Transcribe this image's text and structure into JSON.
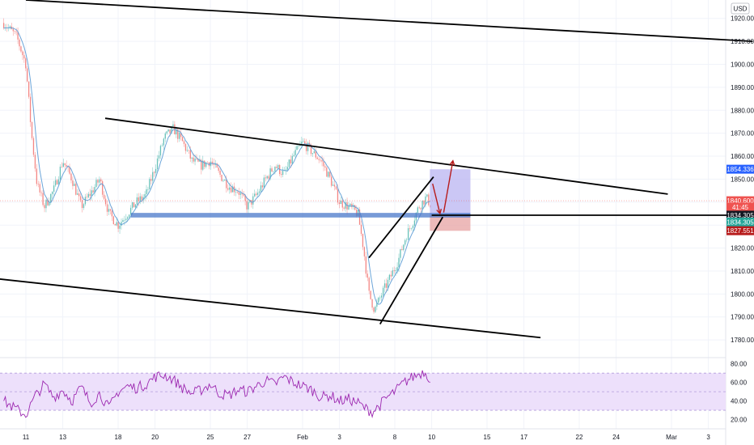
{
  "currency": "USD",
  "colors": {
    "up": "#26a69a",
    "down": "#ef5350",
    "ma": "#5b9bd5",
    "rsi": "#9c27b0",
    "rsi_band": "#ede0fb",
    "grid": "#f0f3fa",
    "trend": "#000000",
    "support_zone": "#4a78c9",
    "target_zone": "#b9b4f2",
    "stop_zone": "#e8a9a9",
    "arrow": "#b71c1c"
  },
  "chart_data": {
    "type": "candlestick",
    "title": "",
    "price_axis": {
      "ylim": [
        1773,
        1928
      ],
      "ticks": [
        "1920.000",
        "1910.000",
        "1900.000",
        "1890.000",
        "1880.000",
        "1870.000",
        "1860.000",
        "1850.000",
        "1840.000",
        "1830.000",
        "1820.000",
        "1810.000",
        "1800.000",
        "1790.000",
        "1780.000"
      ],
      "tick_values": [
        1920,
        1910,
        1900,
        1890,
        1880,
        1870,
        1860,
        1850,
        1840,
        1830,
        1820,
        1810,
        1800,
        1790,
        1780
      ]
    },
    "rsi_axis": {
      "ylim": [
        10,
        85
      ],
      "ticks": [
        "80.00",
        "60.00",
        "40.00",
        "20.00"
      ],
      "tick_values": [
        80,
        60,
        40,
        20
      ],
      "band": [
        30,
        70
      ]
    },
    "time_axis": {
      "labels": [
        "11",
        "13",
        "18",
        "20",
        "25",
        "27",
        "Feb",
        "3",
        "8",
        "10",
        "15",
        "17",
        "22",
        "24",
        "Mar",
        "3"
      ],
      "positions": [
        0,
        2,
        5,
        7,
        10,
        12,
        15,
        17,
        20,
        22,
        25,
        27,
        30,
        32,
        35,
        37
      ]
    },
    "price_badges": [
      {
        "label": "1854.336",
        "value": 1854.336,
        "color": "#2962ff"
      },
      {
        "label": "1840.600",
        "value": 1840.6,
        "color": "#ef5350"
      },
      {
        "label": "41:45",
        "value": 1837.8,
        "color": "#ef5350"
      },
      {
        "label": "1834.305",
        "value": 1834.305,
        "color": "#131722"
      },
      {
        "label": "1834.305",
        "value": 1831.3,
        "color": "#26a69a"
      },
      {
        "label": "1827.551",
        "value": 1827.551,
        "color": "#b71c1c"
      }
    ],
    "close_path": [
      [
        -1.2,
        1918
      ],
      [
        -0.5,
        1912
      ],
      [
        0,
        1900
      ],
      [
        0.3,
        1870
      ],
      [
        0.6,
        1848
      ],
      [
        1,
        1838
      ],
      [
        1.5,
        1845
      ],
      [
        2,
        1858
      ],
      [
        2.5,
        1850
      ],
      [
        3,
        1838
      ],
      [
        3.6,
        1845
      ],
      [
        4,
        1850
      ],
      [
        4.5,
        1835
      ],
      [
        5,
        1830
      ],
      [
        5.5,
        1835
      ],
      [
        6,
        1840
      ],
      [
        6.5,
        1843
      ],
      [
        7,
        1855
      ],
      [
        7.5,
        1868
      ],
      [
        8,
        1872
      ],
      [
        8.5,
        1866
      ],
      [
        9,
        1858
      ],
      [
        9.5,
        1856
      ],
      [
        10,
        1858
      ],
      [
        10.5,
        1852
      ],
      [
        11,
        1847
      ],
      [
        11.5,
        1845
      ],
      [
        12,
        1838
      ],
      [
        12.5,
        1843
      ],
      [
        13,
        1850
      ],
      [
        13.5,
        1856
      ],
      [
        14,
        1852
      ],
      [
        14.5,
        1860
      ],
      [
        15,
        1866
      ],
      [
        15.5,
        1862
      ],
      [
        16,
        1858
      ],
      [
        16.5,
        1850
      ],
      [
        17,
        1840
      ],
      [
        17.5,
        1838
      ],
      [
        18,
        1835
      ],
      [
        18.3,
        1820
      ],
      [
        18.6,
        1800
      ],
      [
        18.9,
        1793
      ],
      [
        19.3,
        1800
      ],
      [
        19.8,
        1808
      ],
      [
        20.2,
        1815
      ],
      [
        20.6,
        1825
      ],
      [
        21,
        1832
      ],
      [
        21.3,
        1838
      ],
      [
        21.7,
        1842
      ],
      [
        22,
        1838
      ]
    ],
    "rsi_path": [
      [
        -1.2,
        40
      ],
      [
        -0.6,
        32
      ],
      [
        0,
        25
      ],
      [
        0.5,
        45
      ],
      [
        1,
        58
      ],
      [
        1.5,
        44
      ],
      [
        2,
        52
      ],
      [
        2.5,
        40
      ],
      [
        3,
        55
      ],
      [
        3.5,
        38
      ],
      [
        4,
        48
      ],
      [
        4.5,
        32
      ],
      [
        5,
        50
      ],
      [
        5.5,
        56
      ],
      [
        6,
        54
      ],
      [
        6.5,
        58
      ],
      [
        7,
        66
      ],
      [
        7.5,
        68
      ],
      [
        8,
        63
      ],
      [
        8.5,
        54
      ],
      [
        9,
        48
      ],
      [
        9.5,
        52
      ],
      [
        10,
        58
      ],
      [
        10.5,
        48
      ],
      [
        11,
        46
      ],
      [
        11.5,
        52
      ],
      [
        12,
        50
      ],
      [
        12.5,
        56
      ],
      [
        13,
        62
      ],
      [
        13.5,
        58
      ],
      [
        14,
        66
      ],
      [
        14.5,
        60
      ],
      [
        15,
        56
      ],
      [
        15.5,
        52
      ],
      [
        16,
        44
      ],
      [
        16.5,
        46
      ],
      [
        17,
        40
      ],
      [
        17.5,
        42
      ],
      [
        18,
        38
      ],
      [
        18.4,
        32
      ],
      [
        18.8,
        28
      ],
      [
        19.2,
        36
      ],
      [
        19.6,
        44
      ],
      [
        20,
        50
      ],
      [
        20.4,
        58
      ],
      [
        20.8,
        64
      ],
      [
        21.2,
        68
      ],
      [
        21.6,
        72
      ],
      [
        22,
        62
      ]
    ],
    "drawings": {
      "trendlines": [
        {
          "from": [
            0,
            1928
          ],
          "to": [
            39.4,
            1910
          ]
        },
        {
          "from": [
            4.3,
            1876.5
          ],
          "to": [
            34.8,
            1843.5
          ]
        },
        {
          "from": [
            -2,
            1807
          ],
          "to": [
            27.9,
            1781
          ]
        },
        {
          "from": [
            18.6,
            1815.8
          ],
          "to": [
            22.1,
            1851
          ]
        },
        {
          "from": [
            19.2,
            1786.9
          ],
          "to": [
            22.6,
            1833.5
          ]
        },
        {
          "from": [
            22,
            1834.3
          ],
          "to": [
            39.6,
            1834.3
          ]
        }
      ],
      "support_zone": {
        "x": [
          5.7,
          24.1
        ],
        "y": [
          1833.3,
          1835.3
        ]
      },
      "target_zone": {
        "x": [
          21.9,
          24.1
        ],
        "y": [
          1834.3,
          1854.3
        ]
      },
      "stop_zone": {
        "x": [
          21.9,
          24.1
        ],
        "y": [
          1827.5,
          1834.3
        ]
      },
      "arrows": [
        {
          "from": [
            22.05,
            1848
          ],
          "to": [
            22.45,
            1835
          ]
        },
        {
          "from": [
            22.65,
            1835.5
          ],
          "to": [
            23.15,
            1858
          ]
        }
      ]
    }
  }
}
